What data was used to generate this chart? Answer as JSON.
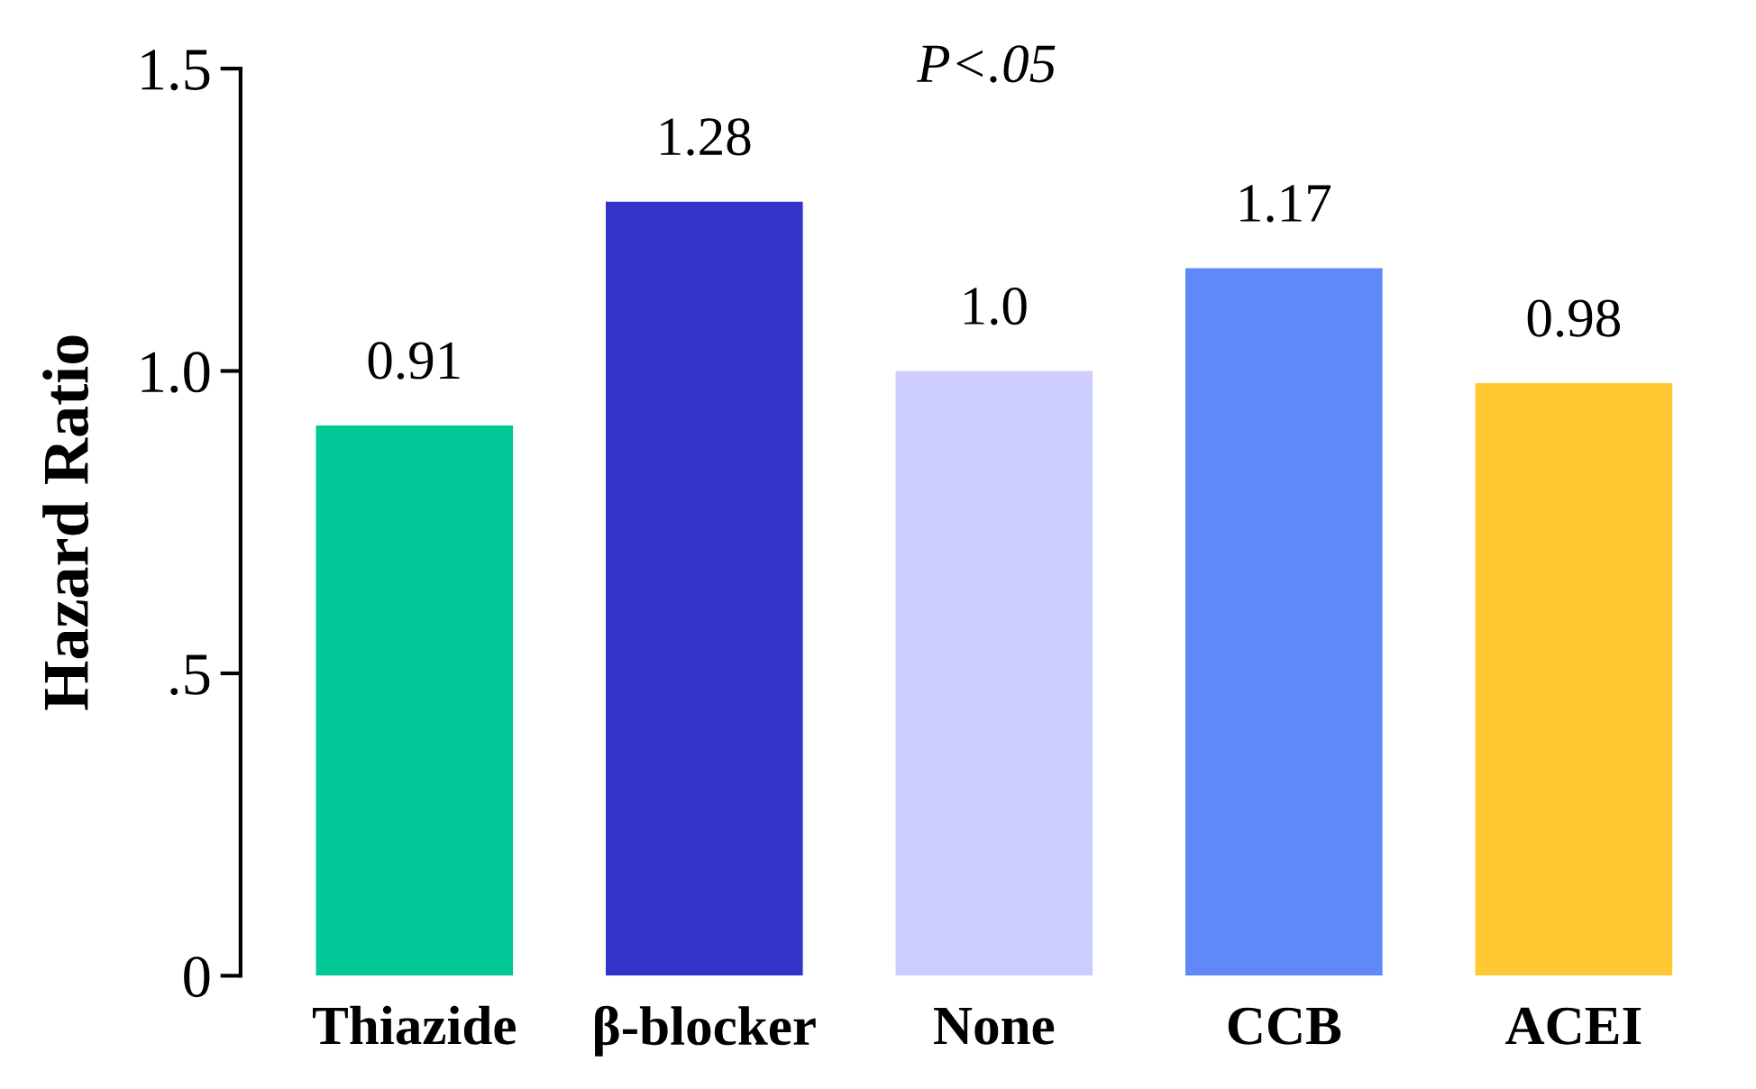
{
  "chart_data": {
    "type": "bar",
    "ylabel": "Hazard Ratio",
    "categories": [
      "Thiazide",
      "β-blocker",
      "None",
      "CCB",
      "ACEI"
    ],
    "values": [
      0.91,
      1.28,
      1.0,
      1.17,
      0.98
    ],
    "colors": [
      "#00c896",
      "#3333cc",
      "#ccccff",
      "#6088f8",
      "#ffc833"
    ],
    "ylim": [
      0,
      1.5
    ],
    "yticks": [
      0,
      {
        "value": 0.5,
        "label": ".5"
      },
      {
        "value": 1.0,
        "label": "1.0"
      },
      {
        "value": 1.5,
        "label": "1.5"
      }
    ],
    "value_labels": [
      "0.91",
      "1.28",
      "1.0",
      "1.17",
      "0.98"
    ],
    "grid": false,
    "legend": false,
    "annotations": [
      {
        "text": "P<.05"
      }
    ]
  }
}
